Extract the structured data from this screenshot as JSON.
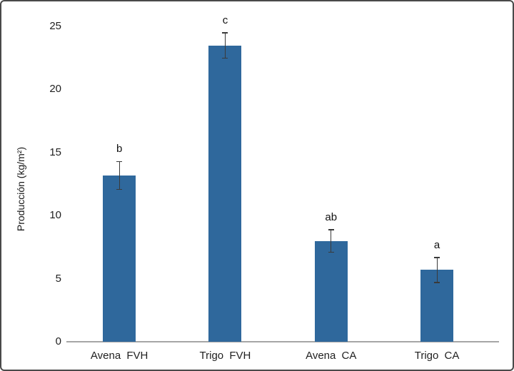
{
  "figure": {
    "background": "#ffffff",
    "border_color": "#4a4a4a"
  },
  "chart_data": {
    "type": "bar",
    "title": "",
    "categories": [
      "Avena FVH",
      "Trigo FVH",
      "Avena CA",
      "Trigo CA"
    ],
    "values": [
      13.2,
      23.5,
      8.0,
      5.7
    ],
    "errors": [
      1.1,
      1.0,
      0.9,
      1.0
    ],
    "sig_letters": [
      "b",
      "c",
      "ab",
      "a"
    ],
    "xlabel": "",
    "ylabel": "Producción (kg/m²)",
    "ylim": [
      0,
      25
    ],
    "yticks": [
      0,
      5,
      10,
      15,
      20,
      25
    ],
    "grid": false,
    "legend": "none",
    "bar_color": "#2f689c",
    "error_bar_color": "#3a3a3a",
    "axis_line_color": "#a6a6a6",
    "text_color": "#1f1f1f"
  }
}
